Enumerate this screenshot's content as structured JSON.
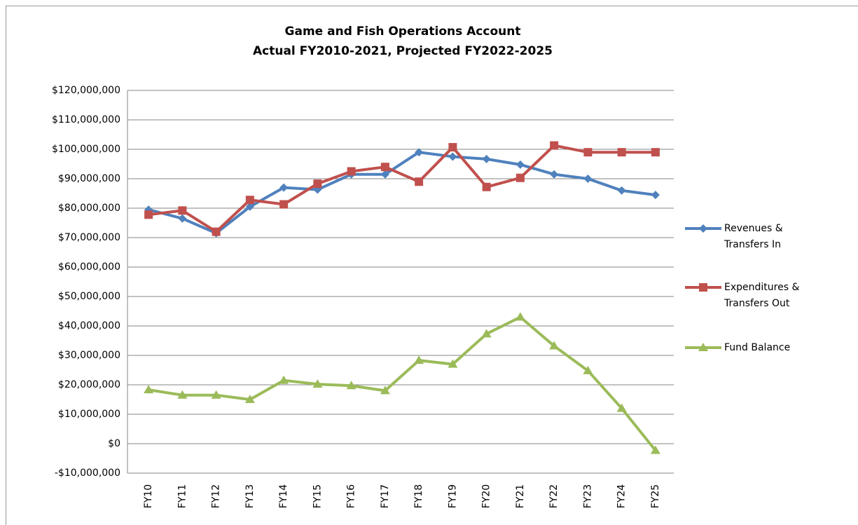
{
  "chart_data": {
    "type": "line",
    "title": "Game and Fish Operations Account",
    "subtitle": "Actual FY2010-2021, Projected FY2022-2025",
    "categories": [
      "FY10",
      "FY11",
      "FY12",
      "FY13",
      "FY14",
      "FY15",
      "FY16",
      "FY17",
      "FY18",
      "FY19",
      "FY20",
      "FY21",
      "FY22",
      "FY23",
      "FY24",
      "FY25"
    ],
    "series": [
      {
        "name": "Revenues & Transfers In",
        "color": "#4f81bd",
        "marker": "diamond",
        "values": [
          79500000,
          76500000,
          71500000,
          80500000,
          87000000,
          86300000,
          91500000,
          91500000,
          99000000,
          97500000,
          96700000,
          94800000,
          91500000,
          90000000,
          86000000,
          84500000
        ]
      },
      {
        "name": "Expenditures & Transfers Out",
        "color": "#c0504d",
        "marker": "square",
        "values": [
          77800000,
          79200000,
          72000000,
          82800000,
          81300000,
          88300000,
          92500000,
          94000000,
          89000000,
          100700000,
          87200000,
          90300000,
          101300000,
          99000000,
          99000000,
          99000000
        ]
      },
      {
        "name": "Fund Balance",
        "color": "#9bbb59",
        "marker": "triangle",
        "values": [
          18300000,
          16500000,
          16500000,
          15000000,
          21500000,
          20200000,
          19700000,
          18000000,
          28300000,
          27000000,
          37300000,
          43000000,
          33200000,
          24800000,
          12000000,
          -2300000
        ]
      }
    ],
    "ylim": [
      -10000000,
      120000000
    ],
    "yticks": [
      {
        "value": -10000000,
        "label": "-$10,000,000"
      },
      {
        "value": 0,
        "label": "$0"
      },
      {
        "value": 10000000,
        "label": "$10,000,000"
      },
      {
        "value": 20000000,
        "label": "$20,000,000"
      },
      {
        "value": 30000000,
        "label": "$30,000,000"
      },
      {
        "value": 40000000,
        "label": "$40,000,000"
      },
      {
        "value": 50000000,
        "label": "$50,000,000"
      },
      {
        "value": 60000000,
        "label": "$60,000,000"
      },
      {
        "value": 70000000,
        "label": "$70,000,000"
      },
      {
        "value": 80000000,
        "label": "$80,000,000"
      },
      {
        "value": 90000000,
        "label": "$90,000,000"
      },
      {
        "value": 100000000,
        "label": "$100,000,000"
      },
      {
        "value": 110000000,
        "label": "$110,000,000"
      },
      {
        "value": 120000000,
        "label": "$120,000,000"
      }
    ],
    "grid": true,
    "legend": "right"
  }
}
